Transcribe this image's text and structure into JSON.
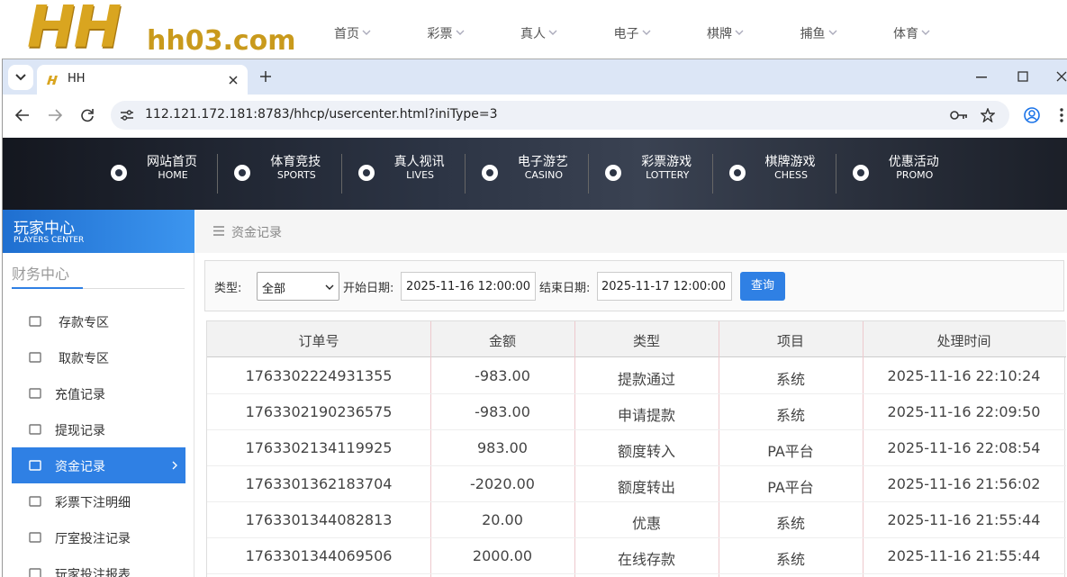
{
  "site_header": {
    "logo": "HH",
    "logo_domain": "hh03.com",
    "nav": [
      "首页",
      "彩票",
      "真人",
      "电子",
      "棋牌",
      "捕鱼",
      "体育"
    ]
  },
  "browser": {
    "tab_title": "HH",
    "url": "112.121.172.181:8783/hhcp/usercenter.html?iniType=3"
  },
  "banner_nav": [
    {
      "title": "网站首页",
      "subtitle": "HOME"
    },
    {
      "title": "体育竞技",
      "subtitle": "SPORTS"
    },
    {
      "title": "真人视讯",
      "subtitle": "LIVES"
    },
    {
      "title": "电子游艺",
      "subtitle": "CASINO"
    },
    {
      "title": "彩票游戏",
      "subtitle": "LOTTERY"
    },
    {
      "title": "棋牌游戏",
      "subtitle": "CHESS"
    },
    {
      "title": "优惠活动",
      "subtitle": "PROMO"
    }
  ],
  "sidebar": {
    "title": "玩家中心",
    "subtitle": "PLAYERS CENTER",
    "section": "财务中心",
    "menu": [
      "存款专区",
      "取款专区",
      "充值记录",
      "提现记录",
      "资金记录",
      "彩票下注明细",
      "厅室投注记录",
      "玩家投注报表"
    ]
  },
  "breadcrumb": "资金记录",
  "filter": {
    "type_label": "类型:",
    "type_value": "全部",
    "start_label": "开始日期:",
    "start_value": "2025-11-16 12:00:00",
    "end_label": "结束日期:",
    "end_value": "2025-11-17 12:00:00",
    "button": "查询"
  },
  "table": {
    "columns": [
      "订单号",
      "金额",
      "类型",
      "项目",
      "处理时间"
    ],
    "rows": [
      [
        "1763302224931355",
        "-983.00",
        "提款通过",
        "系统",
        "2025-11-16 22:10:24"
      ],
      [
        "1763302190236575",
        "-983.00",
        "申请提款",
        "系统",
        "2025-11-16 22:09:50"
      ],
      [
        "1763302134119925",
        "983.00",
        "额度转入",
        "PA平台",
        "2025-11-16 22:08:54"
      ],
      [
        "1763301362183704",
        "-2020.00",
        "额度转出",
        "PA平台",
        "2025-11-16 21:56:02"
      ],
      [
        "1763301344082813",
        "20.00",
        "优惠",
        "系统",
        "2025-11-16 21:55:44"
      ],
      [
        "1763301344069506",
        "2000.00",
        "在线存款",
        "系统",
        "2025-11-16 21:55:44"
      ]
    ]
  }
}
